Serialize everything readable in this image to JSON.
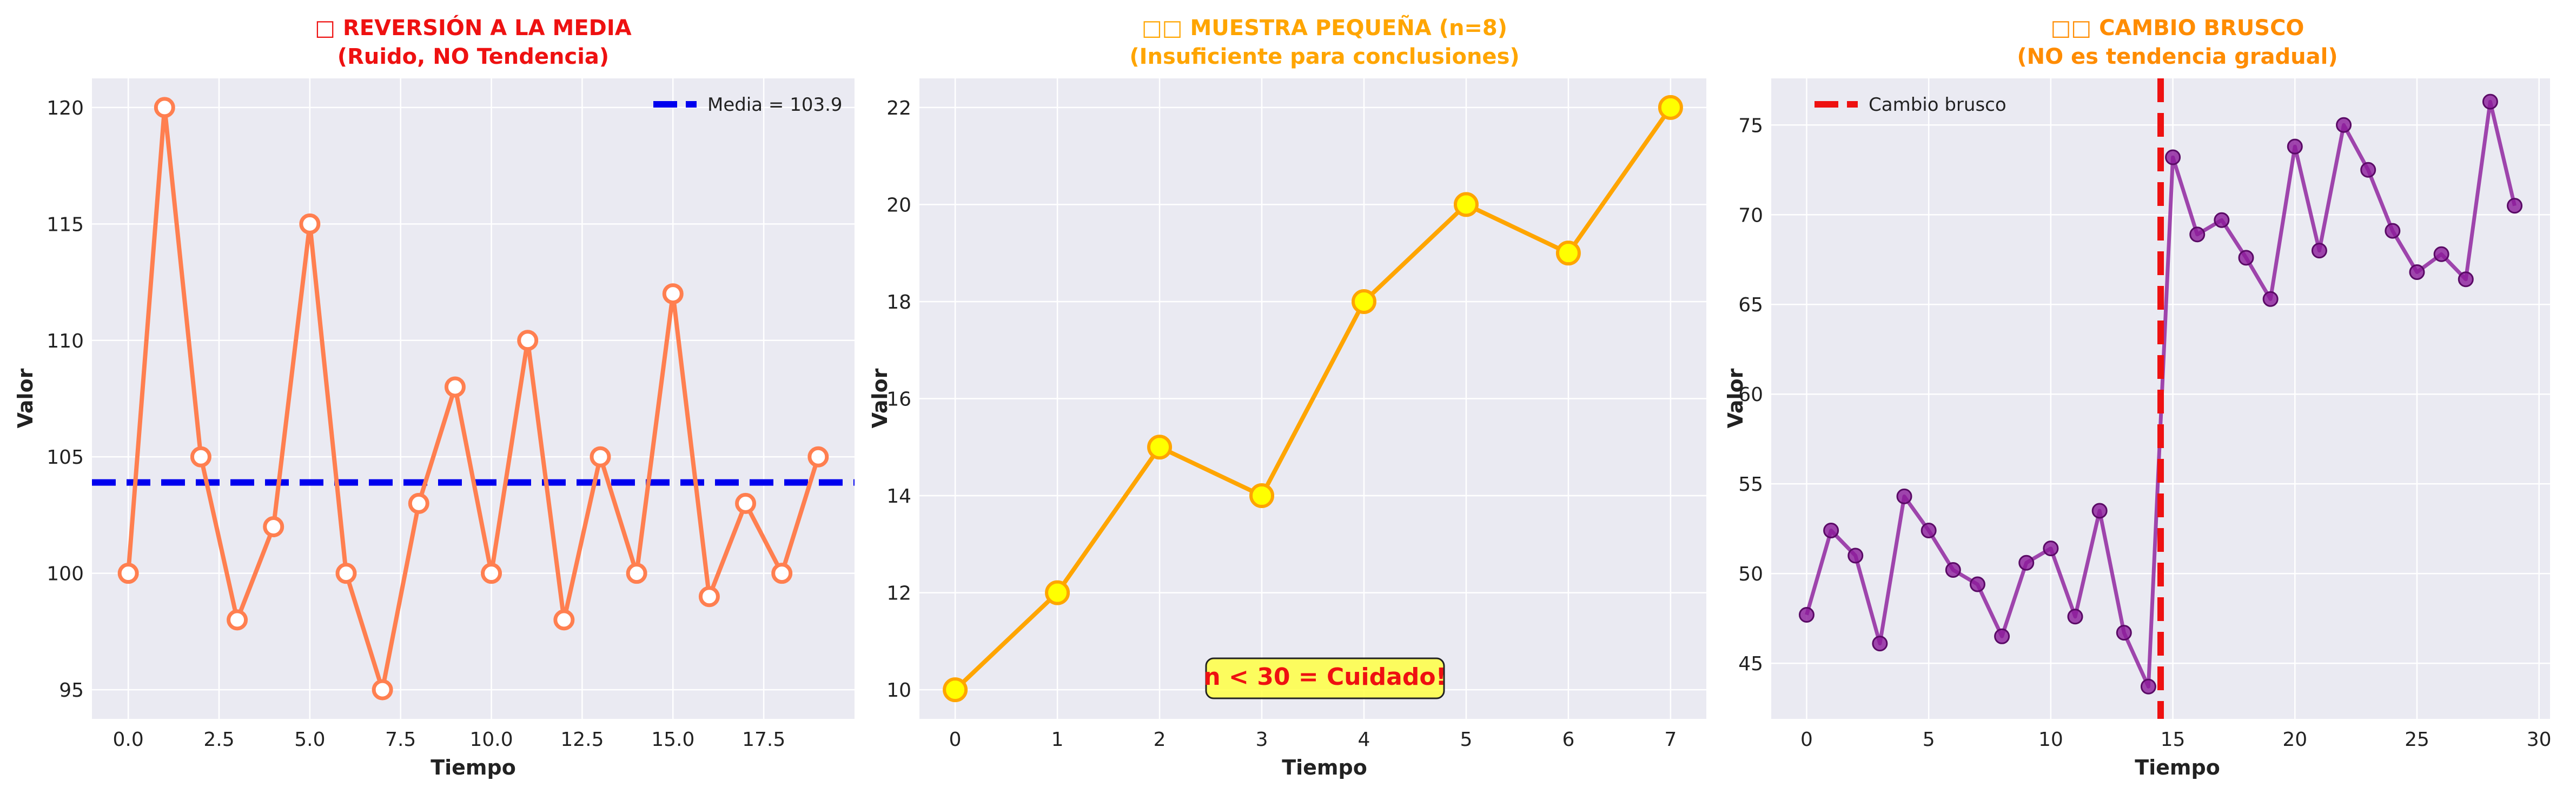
{
  "chart_data": [
    {
      "type": "line",
      "title_line1": "□ REVERSIÓN A LA MEDIA",
      "title_line2": "(Ruido, NO Tendencia)",
      "title_color": "#ee1111",
      "xlabel": "Tiempo",
      "ylabel": "Valor",
      "xlim": [
        -1,
        20
      ],
      "ylim": [
        93.75,
        121.25
      ],
      "xticks": [
        0,
        2.5,
        5,
        7.5,
        10,
        12.5,
        15,
        17.5
      ],
      "xtick_labels": [
        "0.0",
        "2.5",
        "5.0",
        "7.5",
        "10.0",
        "12.5",
        "15.0",
        "17.5"
      ],
      "yticks": [
        95,
        100,
        105,
        110,
        115,
        120
      ],
      "ytick_labels": [
        "95",
        "100",
        "105",
        "110",
        "115",
        "120"
      ],
      "grid": true,
      "legend_position": "top-right",
      "series": [
        {
          "x": [
            0,
            1,
            2,
            3,
            4,
            5,
            6,
            7,
            8,
            9,
            10,
            11,
            12,
            13,
            14,
            15,
            16,
            17,
            18,
            19
          ],
          "values": [
            100,
            120,
            105,
            98,
            102,
            115,
            100,
            95,
            103,
            108,
            100,
            110,
            98,
            105,
            100,
            112,
            99,
            103,
            100,
            105
          ],
          "color": "#ff7f50",
          "marker": "hollow-circle"
        }
      ],
      "hline": {
        "y": 103.9,
        "color": "#0000ee",
        "label": "Media = 103.9"
      }
    },
    {
      "type": "line",
      "title_line1": "□□ MUESTRA PEQUEÑA (n=8)",
      "title_line2": "(Insuficiente para conclusiones)",
      "title_color": "#ffa500",
      "xlabel": "Tiempo",
      "ylabel": "Valor",
      "xlim": [
        -0.35,
        7.35
      ],
      "ylim": [
        9.4,
        22.6
      ],
      "xticks": [
        0,
        1,
        2,
        3,
        4,
        5,
        6,
        7
      ],
      "xtick_labels": [
        "0",
        "1",
        "2",
        "3",
        "4",
        "5",
        "6",
        "7"
      ],
      "yticks": [
        10,
        12,
        14,
        16,
        18,
        20,
        22
      ],
      "ytick_labels": [
        "10",
        "12",
        "14",
        "16",
        "18",
        "20",
        "22"
      ],
      "grid": true,
      "series": [
        {
          "x": [
            0,
            1,
            2,
            3,
            4,
            5,
            6,
            7
          ],
          "values": [
            10,
            12,
            15,
            14,
            18,
            20,
            19,
            22
          ],
          "color": "#ffa500",
          "marker": "yellow-circle"
        }
      ],
      "annotation": {
        "text": "n < 30 = Cuidado!",
        "x": 3.5,
        "y": 10.25,
        "color": "#ee1111",
        "box_color": "#ffff44"
      }
    },
    {
      "type": "line",
      "title_line1": "□□ CAMBIO BRUSCO",
      "title_line2": "(NO es tendencia gradual)",
      "title_color": "#ff8c00",
      "xlabel": "Tiempo",
      "ylabel": "Valor",
      "xlim": [
        -1.45,
        30.45
      ],
      "ylim": [
        41.9,
        77.6
      ],
      "xticks": [
        0,
        5,
        10,
        15,
        20,
        25,
        30
      ],
      "xtick_labels": [
        "0",
        "5",
        "10",
        "15",
        "20",
        "25",
        "30"
      ],
      "yticks": [
        45,
        50,
        55,
        60,
        65,
        70,
        75
      ],
      "ytick_labels": [
        "45",
        "50",
        "55",
        "60",
        "65",
        "70",
        "75"
      ],
      "grid": true,
      "legend_position": "top-left",
      "series": [
        {
          "x": [
            0,
            1,
            2,
            3,
            4,
            5,
            6,
            7,
            8,
            9,
            10,
            11,
            12,
            13,
            14,
            15,
            16,
            17,
            18,
            19,
            20,
            21,
            22,
            23,
            24,
            25,
            26,
            27,
            28,
            29
          ],
          "values": [
            47.7,
            52.4,
            51.0,
            46.1,
            54.3,
            52.4,
            50.2,
            49.4,
            46.5,
            50.6,
            51.4,
            47.6,
            53.5,
            46.7,
            43.7,
            73.2,
            68.9,
            69.7,
            67.6,
            65.3,
            73.8,
            68.0,
            75.0,
            72.5,
            69.1,
            66.8,
            67.8,
            66.4,
            76.3,
            70.5
          ],
          "color": "#8b1a9a",
          "marker": "filled-circle"
        }
      ],
      "vline": {
        "x": 14.5,
        "color": "#ee1111",
        "label": "Cambio brusco"
      }
    }
  ]
}
